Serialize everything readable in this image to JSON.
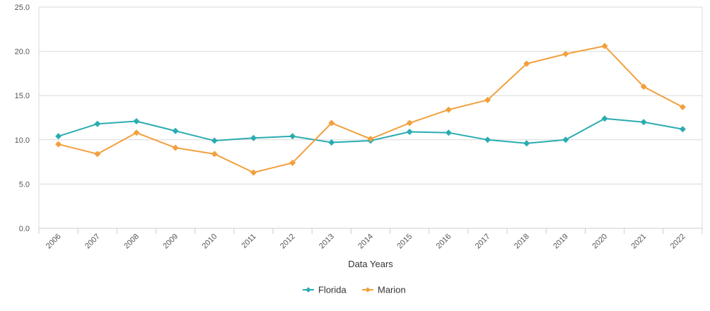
{
  "chart_data": {
    "type": "line",
    "title": "",
    "xlabel": "Data Years",
    "ylabel": "",
    "ylim": [
      0,
      25
    ],
    "yticks": [
      "0.0",
      "5.0",
      "10.0",
      "15.0",
      "20.0",
      "25.0"
    ],
    "grid": true,
    "legend_position": "bottom-center",
    "categories": [
      "2006",
      "2007",
      "2008",
      "2009",
      "2010",
      "2011",
      "2012",
      "2013",
      "2014",
      "2015",
      "2016",
      "2017",
      "2018",
      "2019",
      "2020",
      "2021",
      "2022"
    ],
    "series": [
      {
        "name": "Florida",
        "color": "#2aacb1",
        "values": [
          10.4,
          11.8,
          12.1,
          11.0,
          9.9,
          10.2,
          10.4,
          9.7,
          9.9,
          10.9,
          10.8,
          10.0,
          9.6,
          10.0,
          12.4,
          12.0,
          11.2
        ]
      },
      {
        "name": "Marion",
        "color": "#f2a03d",
        "values": [
          9.5,
          8.4,
          10.8,
          9.1,
          8.4,
          6.3,
          7.4,
          11.9,
          10.1,
          11.9,
          13.4,
          14.5,
          18.6,
          19.7,
          20.6,
          16.0,
          13.7
        ]
      }
    ]
  }
}
